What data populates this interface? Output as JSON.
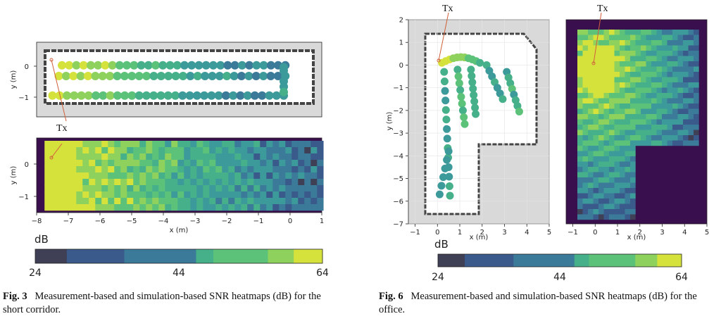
{
  "chart_data": [
    {
      "type": "scatter",
      "panel": "measurement-short-corridor",
      "ylabel": "y (m)",
      "xlim": [
        -8,
        1
      ],
      "ylim": [
        -1.35,
        0.75
      ],
      "yticks": [
        "0",
        "−1"
      ],
      "annotation": "Tx",
      "tx": [
        -7.45,
        0.2
      ],
      "tracks": [
        {
          "y": 0.1,
          "x_start": -7.2,
          "x_end": -0.15,
          "values": [
            60,
            62,
            58,
            61,
            56,
            55,
            59,
            57,
            53,
            52,
            50,
            48,
            47,
            49,
            45,
            44,
            46,
            42,
            43,
            41,
            40,
            39,
            42,
            38,
            37,
            40,
            36,
            39,
            41,
            38,
            35,
            37
          ]
        },
        {
          "y": -0.2,
          "x_start": -7.3,
          "x_end": -0.15,
          "values": [
            61,
            58,
            60,
            57,
            59,
            55,
            54,
            56,
            52,
            51,
            50,
            53,
            49,
            47,
            48,
            46,
            45,
            44,
            43,
            47,
            42,
            41,
            40,
            44,
            39,
            38,
            41,
            37,
            40,
            36,
            38,
            39
          ]
        },
        {
          "y": -0.75,
          "x_start": -7.5,
          "x_end": -0.2,
          "values": [
            59,
            60,
            57,
            56,
            58,
            55,
            53,
            52,
            54,
            51,
            50,
            49,
            47,
            48,
            46,
            45,
            44,
            46,
            43,
            42,
            41,
            40,
            43,
            39,
            38,
            41,
            37,
            40,
            38,
            36,
            39,
            40,
            42
          ]
        }
      ]
    },
    {
      "type": "heatmap",
      "panel": "simulation-short-corridor",
      "xlabel": "x (m)",
      "ylabel": "y (m)",
      "xlim": [
        -8,
        1
      ],
      "ylim": [
        -1.35,
        0.75
      ],
      "xticks": [
        "−8",
        "−7",
        "−6",
        "−5",
        "−4",
        "−3",
        "−2",
        "−1",
        "0",
        "1"
      ],
      "yticks": [
        "0",
        "−1"
      ],
      "annotation": "Tx",
      "tx": [
        -7.45,
        0.2
      ],
      "value_range": [
        24,
        64
      ]
    },
    {
      "type": "scatter",
      "panel": "measurement-office",
      "xlabel": "x (m)",
      "ylabel": "y (m)",
      "xlim": [
        -1.3,
        5
      ],
      "ylim": [
        -7,
        2
      ],
      "xticks": [
        "−1",
        "0",
        "1",
        "2",
        "3",
        "4",
        "5"
      ],
      "yticks": [
        "2",
        "1",
        "0",
        "−1",
        "−2",
        "−3",
        "−4",
        "−5",
        "−6",
        "−7"
      ],
      "annotation": "Tx",
      "tx": [
        0.05,
        0.3
      ],
      "value_range": [
        24,
        64
      ]
    },
    {
      "type": "heatmap",
      "panel": "simulation-office",
      "xlabel": "x (m)",
      "xlim": [
        -1.3,
        5
      ],
      "ylim": [
        -7,
        2
      ],
      "xticks": [
        "−1",
        "0",
        "1",
        "2",
        "3",
        "4",
        "5"
      ],
      "annotation": "Tx",
      "tx": [
        0.05,
        0.1
      ],
      "value_range": [
        24,
        64
      ]
    }
  ],
  "colorbar": {
    "label": "dB",
    "min_label": "24",
    "mid_label": "44",
    "max_label": "64",
    "min": 24,
    "max": 64,
    "colors": [
      "#3f3f55",
      "#3b5a8c",
      "#3b7a99",
      "#3d9a9a",
      "#46b08a",
      "#5cc27a",
      "#8ed15c",
      "#d6e23c"
    ]
  },
  "caption_left": {
    "label": "Fig. 3",
    "text": "Measurement-based and simulation-based SNR heatmaps (dB) for the short corridor."
  },
  "caption_right": {
    "label": "Fig. 6",
    "text": "Measurement-based and simulation-based SNR heatmaps (dB) for the office."
  }
}
